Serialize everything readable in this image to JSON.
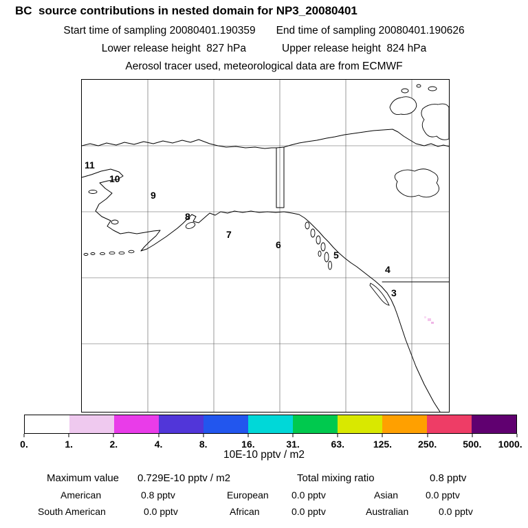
{
  "header": {
    "title": "BC  source contributions in nested domain for NP3_20080401",
    "sampling_start": "Start time of sampling 20080401.190359",
    "sampling_end": "End time of sampling 20080401.190626",
    "lower_release": "Lower release height  827 hPa",
    "upper_release": "Upper release height  824 hPa",
    "tracer_line": "Aerosol tracer used, meteorological data are from ECMWF"
  },
  "stats": {
    "maximum_label": "Maximum value",
    "maximum_value": "0.729E-10 pptv / m2",
    "total_label": "Total mixing ratio",
    "total_value": "0.8 pptv"
  },
  "chart_data": {
    "type": "heatmap",
    "title": "BC source contributions in nested domain for NP3_20080401",
    "colorbar_unit": "10E-10 pptv / m2",
    "colorbar_levels": [
      0,
      1,
      2,
      4,
      8,
      16,
      31,
      63,
      125,
      250,
      500,
      1000
    ],
    "colorbar_tick_labels": [
      "0.",
      "1.",
      "2.",
      "4.",
      "8.",
      "16.",
      "31.",
      "63.",
      "125.",
      "250.",
      "500.",
      "1000."
    ],
    "colorbar_colors": [
      "#FFFFFF",
      "#EFC9EF",
      "#E93CE9",
      "#5136D9",
      "#2256EE",
      "#00D8D8",
      "#00C94E",
      "#D9E800",
      "#FFA000",
      "#EE3D66",
      "#600070"
    ],
    "trajectory_points": [
      {
        "label": "11"
      },
      {
        "label": "10"
      },
      {
        "label": "9"
      },
      {
        "label": "8"
      },
      {
        "label": "7"
      },
      {
        "label": "6"
      },
      {
        "label": "5"
      },
      {
        "label": "4"
      },
      {
        "label": "3"
      }
    ],
    "maximum_value": "0.729E-10 pptv / m2",
    "total_mixing_ratio": "0.8 pptv",
    "source_contributions": [
      {
        "region": "American",
        "value": "0.8 pptv"
      },
      {
        "region": "European",
        "value": "0.0 pptv"
      },
      {
        "region": "Asian",
        "value": "0.0 pptv"
      },
      {
        "region": "South American",
        "value": "0.0 pptv"
      },
      {
        "region": "African",
        "value": "0.0 pptv"
      },
      {
        "region": "Australian",
        "value": "0.0 pptv"
      }
    ],
    "layout_hints": {
      "map_region": "Alaska / northwest North America coastline with lat-lon grid",
      "grid": "on",
      "legend_position": "bottom horizontal colorbar"
    }
  }
}
